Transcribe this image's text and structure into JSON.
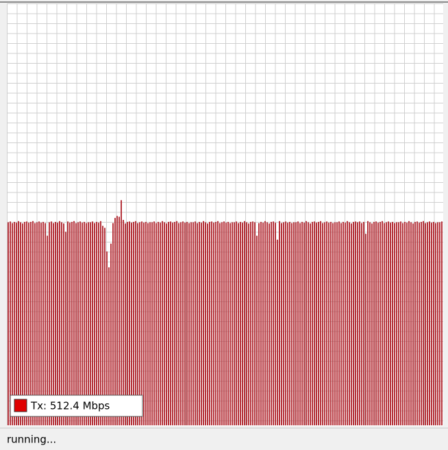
{
  "chart_data": {
    "type": "bar",
    "series": [
      {
        "name": "Tx: 512.4 Mbps",
        "color": "#b5323a",
        "values": [
          514,
          516,
          512,
          515,
          513,
          517,
          514,
          511,
          515,
          516,
          513,
          515,
          517,
          512,
          514,
          516,
          513,
          515,
          512,
          480,
          514,
          516,
          512,
          515,
          513,
          517,
          514,
          511,
          490,
          516,
          513,
          515,
          517,
          512,
          514,
          516,
          513,
          515,
          512,
          514,
          514,
          516,
          512,
          515,
          513,
          517,
          505,
          500,
          440,
          400,
          460,
          512,
          525,
          530,
          528,
          570,
          520,
          511,
          515,
          516,
          513,
          515,
          517,
          512,
          514,
          516,
          513,
          515,
          512,
          514,
          514,
          516,
          512,
          515,
          513,
          517,
          514,
          511,
          515,
          516,
          513,
          515,
          517,
          512,
          514,
          516,
          513,
          515,
          512,
          514,
          514,
          516,
          512,
          515,
          513,
          517,
          514,
          511,
          515,
          516,
          513,
          515,
          517,
          512,
          514,
          516,
          513,
          515,
          512,
          514,
          514,
          516,
          512,
          515,
          513,
          517,
          514,
          511,
          515,
          516,
          514,
          480,
          512,
          515,
          513,
          517,
          514,
          511,
          515,
          516,
          513,
          470,
          517,
          512,
          514,
          516,
          513,
          515,
          512,
          514,
          514,
          516,
          512,
          515,
          513,
          517,
          514,
          511,
          515,
          516,
          513,
          515,
          517,
          512,
          514,
          516,
          513,
          515,
          512,
          514,
          514,
          516,
          512,
          515,
          513,
          517,
          514,
          511,
          515,
          516,
          514,
          516,
          512,
          515,
          485,
          517,
          514,
          511,
          515,
          516,
          513,
          515,
          517,
          512,
          514,
          516,
          513,
          515,
          512,
          514,
          514,
          516,
          512,
          515,
          513,
          517,
          514,
          511,
          515,
          516,
          513,
          515,
          517,
          512,
          514,
          516,
          513,
          515,
          512,
          514,
          514,
          516
        ]
      }
    ],
    "ylim": [
      0,
      1068
    ],
    "status": "running..."
  }
}
